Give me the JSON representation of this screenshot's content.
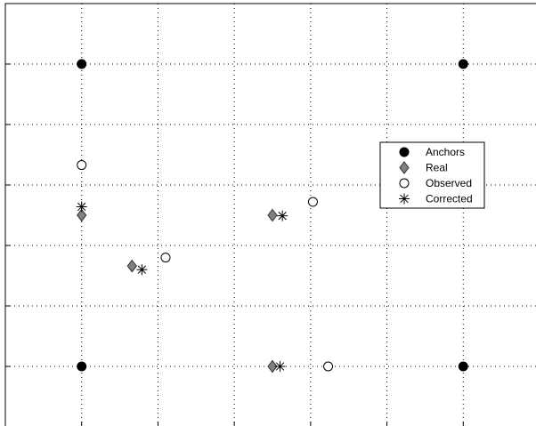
{
  "chart_data": {
    "type": "scatter",
    "title": "",
    "xlabel": "",
    "ylabel": "",
    "xlim": [
      0,
      7
    ],
    "ylim": [
      0,
      7
    ],
    "x_ticks": [
      1,
      2,
      3,
      4,
      5,
      6
    ],
    "y_ticks": [
      1,
      2,
      3,
      4,
      5,
      6
    ],
    "grid": true,
    "tick_labels_visible": false,
    "legend_position": "right-center",
    "series": [
      {
        "name": "Anchors",
        "marker": "filled-circle",
        "color": "#000000",
        "points": [
          [
            1,
            6
          ],
          [
            6,
            6
          ],
          [
            1,
            1
          ],
          [
            6,
            1
          ]
        ]
      },
      {
        "name": "Real",
        "marker": "gray-diamond",
        "color": "#808080",
        "points": [
          [
            1,
            3.5
          ],
          [
            3.5,
            3.5
          ],
          [
            1.66,
            2.66
          ],
          [
            3.5,
            1
          ]
        ]
      },
      {
        "name": "Observed",
        "marker": "open-circle",
        "color": "#000000",
        "points": [
          [
            1,
            4.33
          ],
          [
            4.03,
            3.72
          ],
          [
            2.1,
            2.8
          ],
          [
            4.23,
            1
          ]
        ]
      },
      {
        "name": "Corrected",
        "marker": "asterisk",
        "color": "#000000",
        "points": [
          [
            1,
            3.64
          ],
          [
            3.63,
            3.49
          ],
          [
            1.79,
            2.6
          ],
          [
            3.6,
            1
          ]
        ]
      }
    ]
  }
}
